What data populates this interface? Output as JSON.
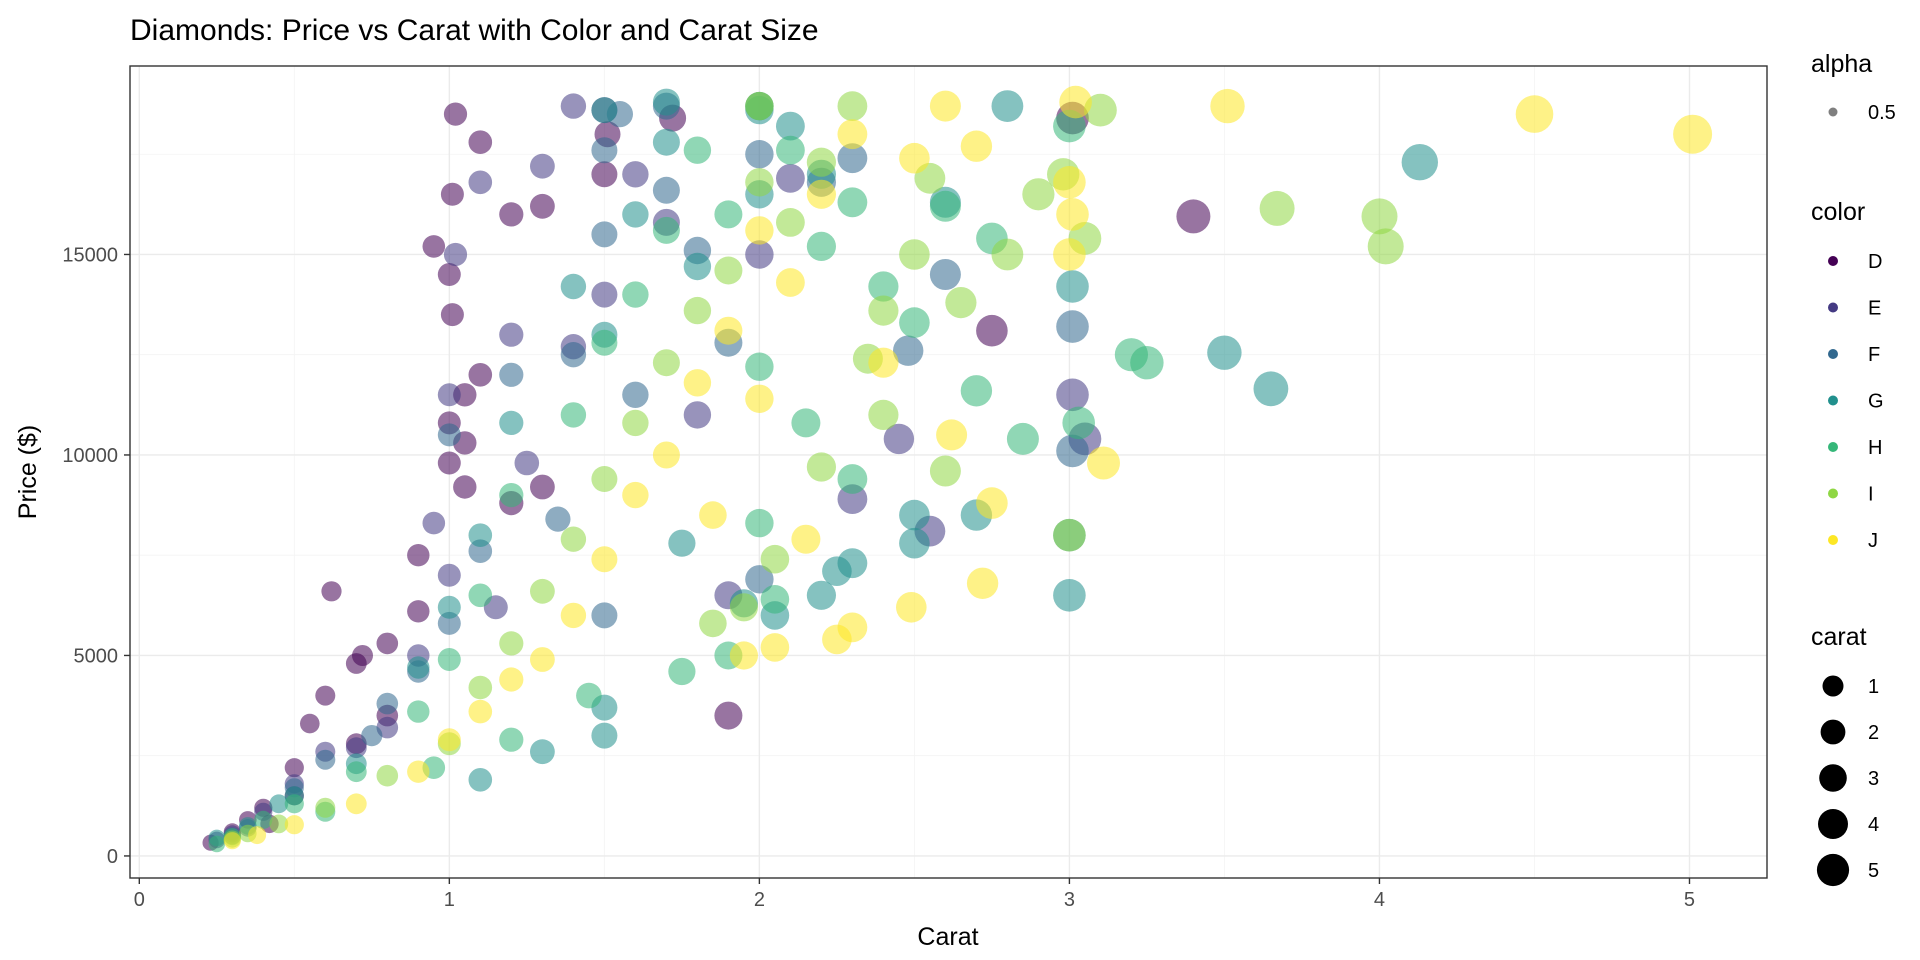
{
  "chart_data": {
    "type": "scatter",
    "title": "Diamonds: Price vs Carat with Color and Carat Size",
    "xlabel": "Carat",
    "ylabel": "Price ($)",
    "xlim": [
      -0.03,
      5.25
    ],
    "ylim": [
      -550,
      19700
    ],
    "x_ticks": [
      0,
      1,
      2,
      3,
      4,
      5
    ],
    "y_ticks": [
      0,
      5000,
      10000,
      15000
    ],
    "x_tick_labels": [
      "0",
      "1",
      "2",
      "3",
      "4",
      "5"
    ],
    "y_tick_labels": [
      "0",
      "5000",
      "10000",
      "15000"
    ],
    "grid": true,
    "legend_position": "right",
    "legends": {
      "alpha": {
        "title": "alpha",
        "entries": [
          "0.5"
        ]
      },
      "color": {
        "title": "color",
        "entries": [
          "D",
          "E",
          "F",
          "G",
          "H",
          "I",
          "J"
        ]
      },
      "size": {
        "title": "carat",
        "entries": [
          "1",
          "2",
          "3",
          "4",
          "5"
        ]
      }
    },
    "colors": {
      "D": "#440154",
      "E": "#443a83",
      "F": "#31688e",
      "G": "#21908d",
      "H": "#35b779",
      "I": "#8fd744",
      "J": "#fde725"
    },
    "series": [
      {
        "name": "D",
        "points": [
          [
            0.23,
            330
          ],
          [
            0.3,
            600
          ],
          [
            0.35,
            900
          ],
          [
            0.4,
            1200
          ],
          [
            0.5,
            2200
          ],
          [
            0.55,
            3300
          ],
          [
            0.6,
            4000
          ],
          [
            0.7,
            4800
          ],
          [
            0.7,
            2800
          ],
          [
            0.8,
            5300
          ],
          [
            0.9,
            6100
          ],
          [
            0.62,
            6600
          ],
          [
            1.0,
            9800
          ],
          [
            1.0,
            14500
          ],
          [
            1.01,
            16500
          ],
          [
            1.02,
            18500
          ],
          [
            1.05,
            11500
          ],
          [
            1.1,
            12000
          ],
          [
            1.2,
            16000
          ],
          [
            1.2,
            8800
          ],
          [
            1.1,
            17800
          ],
          [
            0.95,
            15200
          ],
          [
            1.01,
            13500
          ],
          [
            1.3,
            16200
          ],
          [
            1.3,
            9200
          ],
          [
            1.51,
            18000
          ],
          [
            1.5,
            17000
          ],
          [
            1.72,
            18400
          ],
          [
            1.05,
            10300
          ],
          [
            0.9,
            7500
          ],
          [
            0.5,
            1500
          ],
          [
            0.42,
            800
          ],
          [
            3.4,
            15950
          ],
          [
            2.75,
            13100
          ],
          [
            3.01,
            18400
          ],
          [
            1.9,
            3500
          ],
          [
            1.05,
            9200
          ],
          [
            1.0,
            10800
          ],
          [
            0.8,
            3500
          ],
          [
            0.72,
            5000
          ]
        ]
      },
      {
        "name": "E",
        "points": [
          [
            0.25,
            400
          ],
          [
            0.3,
            550
          ],
          [
            0.4,
            1100
          ],
          [
            0.5,
            1800
          ],
          [
            0.7,
            2700
          ],
          [
            0.9,
            5000
          ],
          [
            1.0,
            7000
          ],
          [
            1.0,
            11500
          ],
          [
            1.02,
            15000
          ],
          [
            1.1,
            16800
          ],
          [
            1.2,
            13000
          ],
          [
            1.3,
            17200
          ],
          [
            1.4,
            18700
          ],
          [
            1.5,
            14000
          ],
          [
            1.5,
            18600
          ],
          [
            1.6,
            17000
          ],
          [
            1.7,
            15800
          ],
          [
            1.8,
            11000
          ],
          [
            2.0,
            15000
          ],
          [
            2.1,
            16900
          ],
          [
            2.3,
            8900
          ],
          [
            2.45,
            10400
          ],
          [
            2.55,
            8100
          ],
          [
            3.01,
            11500
          ],
          [
            3.05,
            10400
          ],
          [
            1.25,
            9800
          ],
          [
            0.95,
            8300
          ],
          [
            1.15,
            6200
          ],
          [
            0.6,
            2600
          ],
          [
            0.8,
            3200
          ],
          [
            1.4,
            12700
          ],
          [
            1.9,
            6500
          ]
        ]
      },
      {
        "name": "F",
        "points": [
          [
            0.3,
            500
          ],
          [
            0.35,
            700
          ],
          [
            0.5,
            1700
          ],
          [
            0.6,
            2400
          ],
          [
            0.8,
            3800
          ],
          [
            1.0,
            5800
          ],
          [
            1.0,
            10500
          ],
          [
            1.2,
            12000
          ],
          [
            1.4,
            12500
          ],
          [
            1.5,
            15500
          ],
          [
            1.5,
            17600
          ],
          [
            1.55,
            18500
          ],
          [
            1.7,
            16600
          ],
          [
            1.7,
            18700
          ],
          [
            1.9,
            12800
          ],
          [
            2.0,
            17500
          ],
          [
            2.0,
            18700
          ],
          [
            2.2,
            16800
          ],
          [
            2.3,
            17400
          ],
          [
            2.48,
            12600
          ],
          [
            2.6,
            14500
          ],
          [
            3.01,
            13200
          ],
          [
            3.01,
            10100
          ],
          [
            2.0,
            6900
          ],
          [
            1.5,
            6000
          ],
          [
            1.35,
            8400
          ],
          [
            1.1,
            7600
          ],
          [
            0.9,
            4600
          ],
          [
            0.75,
            3000
          ],
          [
            1.6,
            11500
          ],
          [
            1.8,
            15100
          ]
        ]
      },
      {
        "name": "G",
        "points": [
          [
            0.25,
            450
          ],
          [
            0.35,
            750
          ],
          [
            0.45,
            1300
          ],
          [
            0.5,
            1500
          ],
          [
            0.7,
            2300
          ],
          [
            0.9,
            4700
          ],
          [
            1.0,
            6200
          ],
          [
            1.1,
            8000
          ],
          [
            1.2,
            10800
          ],
          [
            1.4,
            14200
          ],
          [
            1.5,
            13000
          ],
          [
            1.5,
            18600
          ],
          [
            1.6,
            16000
          ],
          [
            1.7,
            17800
          ],
          [
            1.7,
            18800
          ],
          [
            1.8,
            14700
          ],
          [
            2.0,
            16500
          ],
          [
            2.0,
            18600
          ],
          [
            2.1,
            18200
          ],
          [
            2.2,
            17000
          ],
          [
            2.3,
            7300
          ],
          [
            2.25,
            7100
          ],
          [
            2.2,
            6500
          ],
          [
            2.5,
            8500
          ],
          [
            2.5,
            7800
          ],
          [
            2.6,
            16300
          ],
          [
            2.8,
            18700
          ],
          [
            2.7,
            8500
          ],
          [
            3.01,
            14200
          ],
          [
            3.0,
            6500
          ],
          [
            3.0,
            8000
          ],
          [
            3.5,
            12550
          ],
          [
            3.65,
            11650
          ],
          [
            4.13,
            17300
          ],
          [
            1.5,
            3000
          ],
          [
            1.5,
            3700
          ],
          [
            1.3,
            2600
          ],
          [
            1.1,
            1900
          ],
          [
            1.95,
            6300
          ],
          [
            2.05,
            6000
          ],
          [
            1.75,
            7800
          ]
        ]
      },
      {
        "name": "H",
        "points": [
          [
            0.25,
            300
          ],
          [
            0.3,
            480
          ],
          [
            0.4,
            900
          ],
          [
            0.5,
            1300
          ],
          [
            0.7,
            2100
          ],
          [
            0.9,
            3600
          ],
          [
            1.0,
            4900
          ],
          [
            1.1,
            6500
          ],
          [
            1.2,
            9000
          ],
          [
            1.4,
            11000
          ],
          [
            1.5,
            12800
          ],
          [
            1.6,
            14000
          ],
          [
            1.7,
            15600
          ],
          [
            1.8,
            17600
          ],
          [
            1.9,
            16000
          ],
          [
            2.0,
            12200
          ],
          [
            2.0,
            18700
          ],
          [
            2.1,
            17600
          ],
          [
            2.2,
            15200
          ],
          [
            2.3,
            16300
          ],
          [
            2.4,
            14200
          ],
          [
            2.5,
            13300
          ],
          [
            2.6,
            16200
          ],
          [
            2.7,
            11600
          ],
          [
            2.75,
            15400
          ],
          [
            2.85,
            10400
          ],
          [
            3.0,
            18200
          ],
          [
            3.03,
            10800
          ],
          [
            3.2,
            12500
          ],
          [
            3.25,
            12300
          ],
          [
            1.75,
            4600
          ],
          [
            1.9,
            5000
          ],
          [
            2.0,
            8300
          ],
          [
            2.05,
            6400
          ],
          [
            1.45,
            4000
          ],
          [
            1.2,
            2900
          ],
          [
            0.95,
            2200
          ],
          [
            0.6,
            1100
          ],
          [
            2.15,
            10800
          ],
          [
            2.3,
            9400
          ]
        ]
      },
      {
        "name": "I",
        "points": [
          [
            0.3,
            420
          ],
          [
            0.35,
            560
          ],
          [
            0.45,
            800
          ],
          [
            0.6,
            1200
          ],
          [
            0.8,
            2000
          ],
          [
            1.0,
            2800
          ],
          [
            1.1,
            4200
          ],
          [
            1.2,
            5300
          ],
          [
            1.3,
            6600
          ],
          [
            1.4,
            7900
          ],
          [
            1.5,
            9400
          ],
          [
            1.6,
            10800
          ],
          [
            1.7,
            12300
          ],
          [
            1.8,
            13600
          ],
          [
            1.9,
            14600
          ],
          [
            2.0,
            16800
          ],
          [
            2.0,
            18700
          ],
          [
            2.1,
            15800
          ],
          [
            2.2,
            17300
          ],
          [
            2.3,
            18700
          ],
          [
            2.35,
            12400
          ],
          [
            2.4,
            13600
          ],
          [
            2.5,
            15000
          ],
          [
            2.55,
            16900
          ],
          [
            2.65,
            13800
          ],
          [
            2.8,
            15000
          ],
          [
            2.9,
            16500
          ],
          [
            2.98,
            17000
          ],
          [
            3.0,
            8000
          ],
          [
            3.05,
            15400
          ],
          [
            3.67,
            16150
          ],
          [
            4.0,
            15950
          ],
          [
            4.02,
            15200
          ],
          [
            3.1,
            18600
          ],
          [
            1.95,
            6200
          ],
          [
            2.05,
            7400
          ],
          [
            1.85,
            5800
          ],
          [
            2.2,
            9700
          ],
          [
            2.4,
            11000
          ],
          [
            2.6,
            9600
          ]
        ]
      },
      {
        "name": "J",
        "points": [
          [
            0.3,
            380
          ],
          [
            0.38,
            520
          ],
          [
            0.5,
            780
          ],
          [
            0.7,
            1300
          ],
          [
            0.9,
            2100
          ],
          [
            1.0,
            2900
          ],
          [
            1.1,
            3600
          ],
          [
            1.2,
            4400
          ],
          [
            1.3,
            4900
          ],
          [
            1.4,
            6000
          ],
          [
            1.5,
            7400
          ],
          [
            1.6,
            9000
          ],
          [
            1.7,
            10000
          ],
          [
            1.8,
            11800
          ],
          [
            1.9,
            13100
          ],
          [
            2.0,
            11400
          ],
          [
            2.0,
            15600
          ],
          [
            2.1,
            14300
          ],
          [
            2.2,
            16500
          ],
          [
            2.3,
            18000
          ],
          [
            2.4,
            12300
          ],
          [
            2.5,
            17400
          ],
          [
            2.6,
            18700
          ],
          [
            2.7,
            17700
          ],
          [
            2.75,
            8800
          ],
          [
            2.72,
            6800
          ],
          [
            2.49,
            6200
          ],
          [
            2.25,
            5400
          ],
          [
            2.3,
            5700
          ],
          [
            2.62,
            10500
          ],
          [
            3.0,
            15000
          ],
          [
            3.01,
            16000
          ],
          [
            3.0,
            16800
          ],
          [
            3.02,
            18800
          ],
          [
            3.11,
            9800
          ],
          [
            3.51,
            18700
          ],
          [
            4.5,
            18500
          ],
          [
            5.01,
            18000
          ],
          [
            1.95,
            5000
          ],
          [
            2.05,
            5200
          ],
          [
            1.85,
            8500
          ],
          [
            2.15,
            7900
          ]
        ]
      }
    ]
  }
}
